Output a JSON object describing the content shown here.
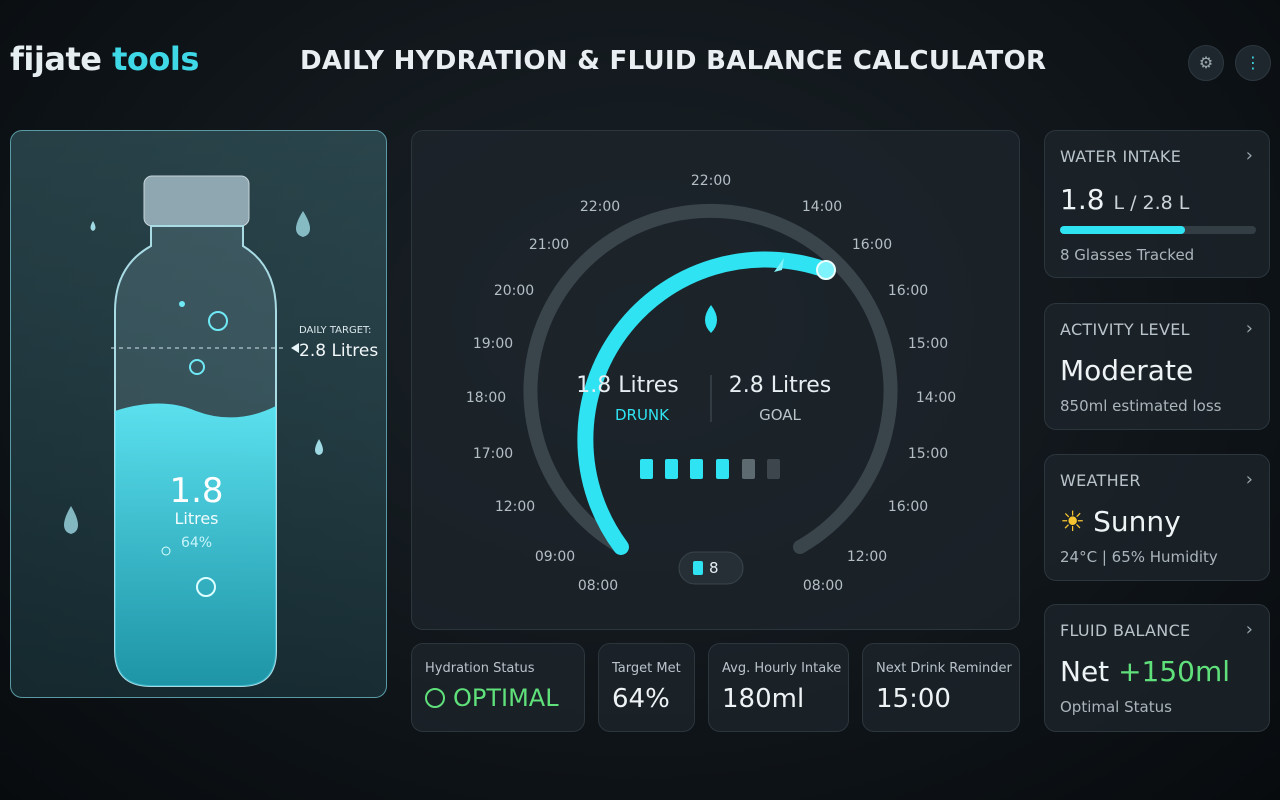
{
  "header": {
    "brand_a": "fijate",
    "brand_b": "tools",
    "title": "DAILY HYDRATION & FLUID BALANCE CALCULATOR"
  },
  "bottle": {
    "target_label": "DAILY TARGET:",
    "target_value": "2.8 Litres",
    "amount": "1.8",
    "unit": "Litres",
    "percent": "64%"
  },
  "gauge": {
    "ticks": [
      "08:00",
      "09:00",
      "12:00",
      "17:00",
      "18:00",
      "19:00",
      "20:00",
      "21:00",
      "22:00",
      "22:00",
      "14:00",
      "16:00",
      "16:00",
      "15:00",
      "14:00",
      "15:00",
      "16:00",
      "12:00",
      "08:00"
    ],
    "drunk_value": "1.8 Litres",
    "drunk_label": "DRUNK",
    "goal_value": "2.8 Litres",
    "goal_label": "GOAL",
    "glass_count": "8"
  },
  "stats": [
    {
      "label": "Hydration Status",
      "value": "OPTIMAL"
    },
    {
      "label": "Target Met",
      "value": "64%"
    },
    {
      "label": "Avg. Hourly Intake",
      "value": "180ml"
    },
    {
      "label": "Next Drink Reminder",
      "value": "15:00"
    }
  ],
  "cards": [
    {
      "title": "WATER INTAKE",
      "main": "1.8",
      "main_suffix": "L / 2.8 L",
      "sub": "8 Glasses Tracked"
    },
    {
      "title": "ACTIVITY LEVEL",
      "main": "Moderate",
      "sub": "850ml estimated loss"
    },
    {
      "title": "WEATHER",
      "main": "Sunny",
      "sub": "24°C | 65% Humidity"
    },
    {
      "title": "FLUID BALANCE",
      "main": "Net",
      "main_value": "+150ml",
      "sub": "Optimal Status"
    }
  ]
}
